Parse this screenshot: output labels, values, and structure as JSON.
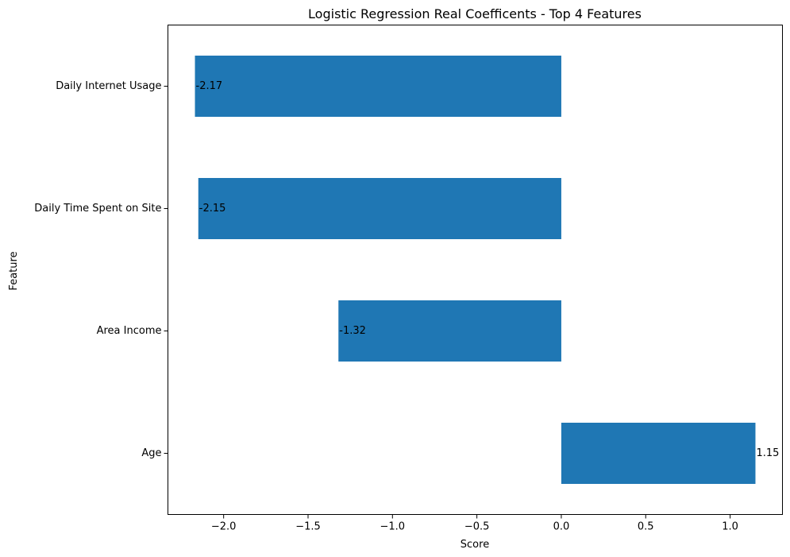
{
  "chart_data": {
    "type": "bar",
    "orientation": "horizontal",
    "title": "Logistic Regression Real Coefficents - Top 4 Features",
    "xlabel": "Score",
    "ylabel": "Feature",
    "categories": [
      "Daily Internet Usage",
      "Daily Time Spent on Site",
      "Area Income",
      "Age"
    ],
    "values": [
      -2.17,
      -2.15,
      -1.32,
      1.15
    ],
    "data_labels": [
      "-2.17",
      "-2.15",
      "-1.32",
      "1.15"
    ],
    "xlim": [
      -2.33,
      1.31
    ],
    "xticks": [
      -2.0,
      -1.5,
      -1.0,
      -0.5,
      0.0,
      0.5,
      1.0
    ],
    "xtick_labels": [
      "−2.0",
      "−1.5",
      "−1.0",
      "−0.5",
      "0.0",
      "0.5",
      "1.0"
    ],
    "grid": false,
    "bar_color": "#1f77b4"
  }
}
